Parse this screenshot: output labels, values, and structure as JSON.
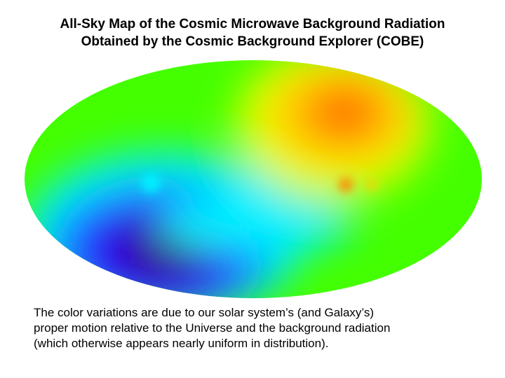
{
  "title": {
    "line1": "All-Sky Map of the Cosmic Microwave Background Radiation",
    "line2": "Obtained by the Cosmic Background Explorer (COBE)"
  },
  "map": {
    "colors": {
      "hot": "#ff3300",
      "warm": "#ffaa00",
      "neutral": "#44ff00",
      "cool": "#00f0ff",
      "cold": "#2a00c8",
      "coldest": "#330066"
    }
  },
  "caption": {
    "line1": "The color variations are due to our solar system’s (and Galaxy’s)",
    "line2": "proper motion relative to the Universe and the background radiation",
    "line3": "(which otherwise appears nearly uniform in distribution)."
  }
}
